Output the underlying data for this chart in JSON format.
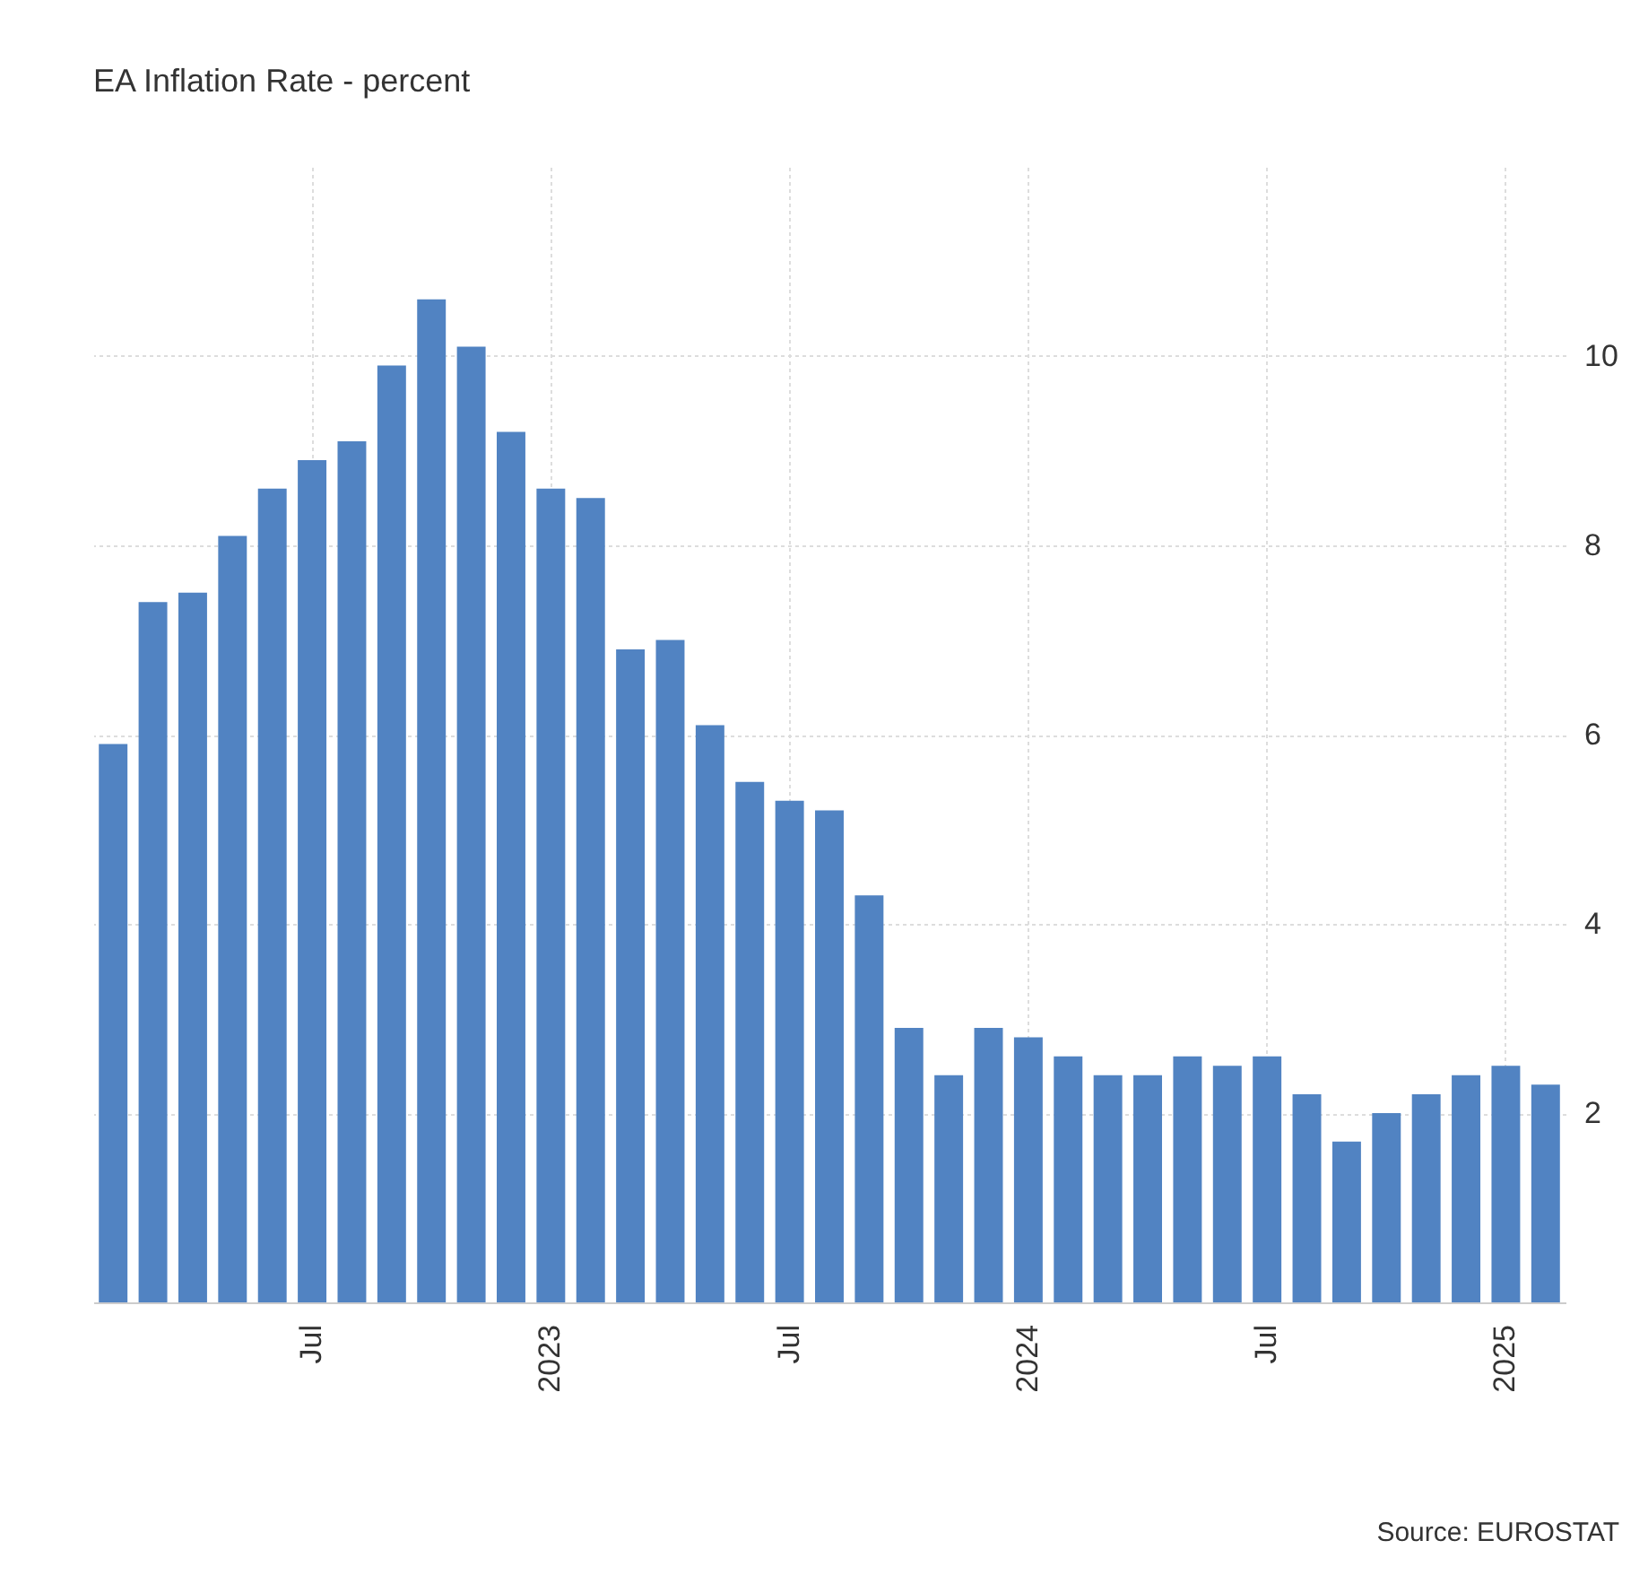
{
  "chart_data": {
    "type": "bar",
    "title": "EA Inflation Rate - percent",
    "categories": [
      null,
      null,
      null,
      null,
      null,
      "Jul",
      null,
      null,
      null,
      null,
      null,
      "2023",
      null,
      null,
      null,
      null,
      null,
      "Jul",
      null,
      null,
      null,
      null,
      null,
      "2024",
      null,
      null,
      null,
      null,
      null,
      "Jul",
      null,
      null,
      null,
      null,
      null,
      "2025",
      null
    ],
    "values": [
      5.9,
      7.4,
      7.5,
      8.1,
      8.6,
      8.9,
      9.1,
      9.9,
      10.6,
      10.1,
      9.2,
      8.6,
      8.5,
      6.9,
      7.0,
      6.1,
      5.5,
      5.3,
      5.2,
      4.3,
      2.9,
      2.4,
      2.9,
      2.8,
      2.6,
      2.4,
      2.4,
      2.6,
      2.5,
      2.6,
      2.2,
      1.7,
      2.0,
      2.2,
      2.4,
      2.5,
      2.3
    ],
    "color": "#5183c2",
    "ylim": [
      0,
      12
    ],
    "yticks": [
      2,
      4,
      6,
      8,
      10
    ],
    "grid": true,
    "annotations": [
      "Source: EUROSTAT"
    ]
  }
}
